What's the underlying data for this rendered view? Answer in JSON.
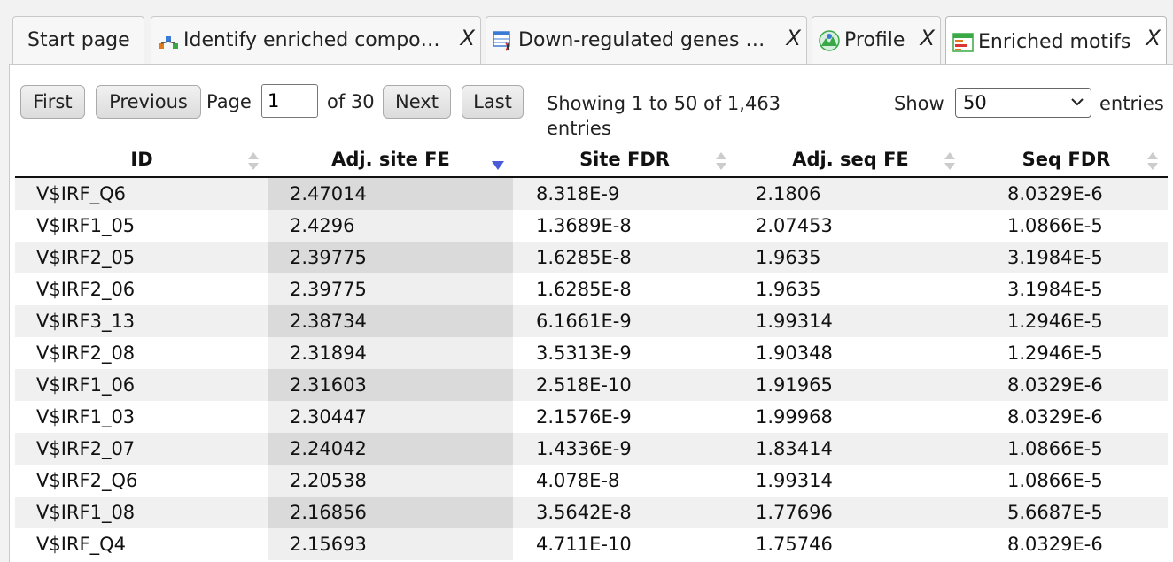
{
  "tabs": [
    {
      "label": "Start page",
      "icon": "none"
    },
    {
      "label": "Identify enriched compo…",
      "icon": "workflow-icon"
    },
    {
      "label": "Down-regulated genes …",
      "icon": "table-gene-icon"
    },
    {
      "label": "Profile",
      "icon": "profile-icon"
    },
    {
      "label": "Enriched motifs",
      "icon": "table-icon"
    }
  ],
  "close_label": "X",
  "pager": {
    "first": "First",
    "previous": "Previous",
    "page_label": "Page",
    "page_value": "1",
    "of_label": "of 30",
    "next": "Next",
    "last": "Last",
    "showing_line1": "Showing 1 to 50 of 1,463",
    "showing_line2": "entries",
    "show_label": "Show",
    "show_value": "50",
    "entries_label": "entries"
  },
  "table": {
    "columns": [
      "ID",
      "Adj. site FE",
      "Site FDR",
      "Adj. seq FE",
      "Seq FDR"
    ],
    "sorted_column": 1,
    "rows": [
      [
        "V$IRF_Q6",
        "2.47014",
        "8.318E-9",
        "2.1806",
        "8.0329E-6"
      ],
      [
        "V$IRF1_05",
        "2.4296",
        "1.3689E-8",
        "2.07453",
        "1.0866E-5"
      ],
      [
        "V$IRF2_05",
        "2.39775",
        "1.6285E-8",
        "1.9635",
        "3.1984E-5"
      ],
      [
        "V$IRF2_06",
        "2.39775",
        "1.6285E-8",
        "1.9635",
        "3.1984E-5"
      ],
      [
        "V$IRF3_13",
        "2.38734",
        "6.1661E-9",
        "1.99314",
        "1.2946E-5"
      ],
      [
        "V$IRF2_08",
        "2.31894",
        "3.5313E-9",
        "1.90348",
        "1.2946E-5"
      ],
      [
        "V$IRF1_06",
        "2.31603",
        "2.518E-10",
        "1.91965",
        "8.0329E-6"
      ],
      [
        "V$IRF1_03",
        "2.30447",
        "2.1576E-9",
        "1.99968",
        "8.0329E-6"
      ],
      [
        "V$IRF2_07",
        "2.24042",
        "1.4336E-9",
        "1.83414",
        "1.0866E-5"
      ],
      [
        "V$IRF2_Q6",
        "2.20538",
        "4.078E-8",
        "1.99314",
        "1.0866E-5"
      ],
      [
        "V$IRF1_08",
        "2.16856",
        "3.5642E-8",
        "1.77696",
        "5.6687E-5"
      ],
      [
        "V$IRF_Q4",
        "2.15693",
        "4.711E-10",
        "1.75746",
        "8.0329E-6"
      ]
    ]
  },
  "colors": {
    "sort_active": "#4a5bd9",
    "sort_inactive": "#cccccc"
  }
}
